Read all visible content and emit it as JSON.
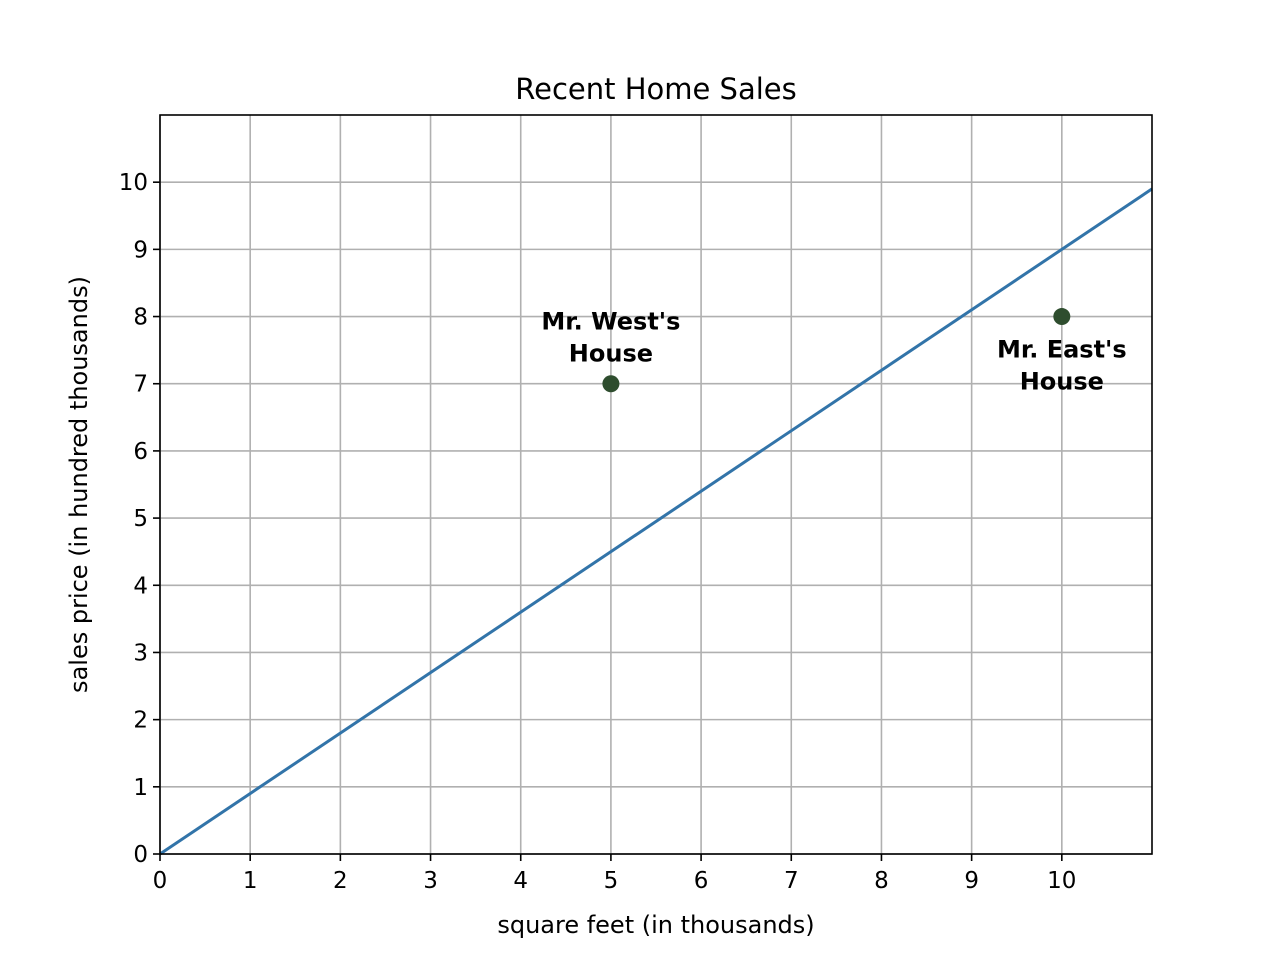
{
  "chart_data": {
    "type": "scatter",
    "title": "Recent Home Sales",
    "xlabel": "square feet (in thousands)",
    "ylabel": "sales price (in hundred thousands)",
    "xlim": [
      0,
      11
    ],
    "ylim": [
      0,
      11
    ],
    "xticks": [
      0,
      1,
      2,
      3,
      4,
      5,
      6,
      7,
      8,
      9,
      10
    ],
    "yticks": [
      0,
      1,
      2,
      3,
      4,
      5,
      6,
      7,
      8,
      9,
      10
    ],
    "grid": true,
    "series": [
      {
        "kind": "line",
        "points": [
          [
            0,
            0
          ],
          [
            11,
            9.9
          ]
        ],
        "color": "#3274a9"
      },
      {
        "kind": "scatter",
        "points": [
          [
            5,
            7
          ],
          [
            10,
            8
          ]
        ],
        "color": "#2e4d2e"
      }
    ],
    "annotations": [
      {
        "x": 5,
        "y": 7,
        "lines": [
          "Mr. West's",
          "House"
        ],
        "placement": "above"
      },
      {
        "x": 10,
        "y": 8,
        "lines": [
          "Mr. East's",
          "House"
        ],
        "placement": "below"
      }
    ]
  }
}
